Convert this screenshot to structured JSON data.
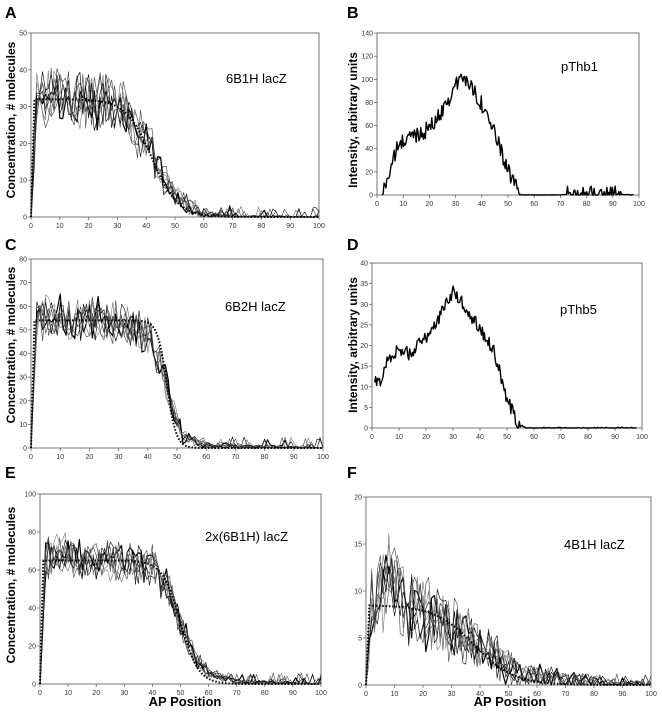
{
  "figure": {
    "x_axis_label": "AP Position",
    "y_axis_label_concentration": "Concentration, # molecules",
    "y_axis_label_intensity": "Intensity, arbitrary units"
  },
  "chart_data": [
    {
      "id": "A",
      "letter": "A",
      "type": "line",
      "title": "6B1H lacZ",
      "xlabel": "",
      "ylabel": "Concentration, # molecules",
      "xlim": [
        0,
        100
      ],
      "ylim": [
        0,
        50
      ],
      "xticks": [
        0,
        10,
        20,
        30,
        40,
        50,
        60,
        70,
        80,
        90,
        100
      ],
      "yticks": [
        0,
        10,
        20,
        30,
        40,
        50
      ],
      "description": "noisy simulated concentration traces with dotted sigmoid fit",
      "fit": {
        "plateau": 32,
        "midpoint": 42,
        "width": 4.5
      },
      "noise_amplitude": 7,
      "num_traces": 8,
      "approx_values": [
        {
          "x": 0,
          "y": 0
        },
        {
          "x": 2,
          "y": 33
        },
        {
          "x": 10,
          "y": 34
        },
        {
          "x": 20,
          "y": 31
        },
        {
          "x": 30,
          "y": 31
        },
        {
          "x": 40,
          "y": 21
        },
        {
          "x": 45,
          "y": 12
        },
        {
          "x": 50,
          "y": 6
        },
        {
          "x": 55,
          "y": 3
        },
        {
          "x": 60,
          "y": 1
        },
        {
          "x": 70,
          "y": 0
        },
        {
          "x": 100,
          "y": 0
        }
      ]
    },
    {
      "id": "B",
      "letter": "B",
      "type": "line",
      "title": "pThb1",
      "xlabel": "",
      "ylabel": "Intensity, arbitrary units",
      "xlim": [
        0,
        100
      ],
      "ylim": [
        0,
        140
      ],
      "xticks": [
        0,
        10,
        20,
        30,
        40,
        50,
        60,
        70,
        80,
        90,
        100
      ],
      "yticks": [
        0,
        20,
        40,
        60,
        80,
        100,
        120,
        140
      ],
      "description": "noisy measured intensity profile",
      "noise_amplitude": 7,
      "approx_values": [
        {
          "x": 2,
          "y": 0
        },
        {
          "x": 5,
          "y": 22
        },
        {
          "x": 8,
          "y": 42
        },
        {
          "x": 12,
          "y": 50
        },
        {
          "x": 18,
          "y": 55
        },
        {
          "x": 22,
          "y": 62
        },
        {
          "x": 27,
          "y": 82
        },
        {
          "x": 32,
          "y": 102
        },
        {
          "x": 36,
          "y": 95
        },
        {
          "x": 42,
          "y": 70
        },
        {
          "x": 47,
          "y": 40
        },
        {
          "x": 52,
          "y": 10
        },
        {
          "x": 55,
          "y": 0
        },
        {
          "x": 70,
          "y": 0
        },
        {
          "x": 80,
          "y": 2
        },
        {
          "x": 88,
          "y": 1
        },
        {
          "x": 98,
          "y": 0
        }
      ]
    },
    {
      "id": "C",
      "letter": "C",
      "type": "line",
      "title": "6B2H lacZ",
      "xlabel": "",
      "ylabel": "Concentration, # molecules",
      "xlim": [
        0,
        100
      ],
      "ylim": [
        0,
        80
      ],
      "xticks": [
        0,
        10,
        20,
        30,
        40,
        50,
        60,
        70,
        80,
        90,
        100
      ],
      "yticks": [
        0,
        10,
        20,
        30,
        40,
        50,
        60,
        70,
        80
      ],
      "description": "noisy simulated concentration traces with dotted sigmoid fit",
      "fit": {
        "plateau": 54,
        "midpoint": 46.5,
        "width": 1.6
      },
      "noise_amplitude": 8,
      "num_traces": 8,
      "approx_values": [
        {
          "x": 0,
          "y": 0
        },
        {
          "x": 2,
          "y": 55
        },
        {
          "x": 10,
          "y": 55
        },
        {
          "x": 20,
          "y": 54
        },
        {
          "x": 30,
          "y": 53
        },
        {
          "x": 40,
          "y": 48
        },
        {
          "x": 45,
          "y": 35
        },
        {
          "x": 48,
          "y": 18
        },
        {
          "x": 52,
          "y": 5
        },
        {
          "x": 60,
          "y": 1
        },
        {
          "x": 100,
          "y": 0
        }
      ]
    },
    {
      "id": "D",
      "letter": "D",
      "type": "line",
      "title": "pThb5",
      "xlabel": "",
      "ylabel": "Intensity, arbitrary units",
      "xlim": [
        0,
        100
      ],
      "ylim": [
        0,
        40
      ],
      "xticks": [
        0,
        10,
        20,
        30,
        40,
        50,
        60,
        70,
        80,
        90,
        100
      ],
      "yticks": [
        0,
        5,
        10,
        15,
        20,
        25,
        30,
        35,
        40
      ],
      "description": "noisy measured intensity profile",
      "noise_amplitude": 1.6,
      "approx_values": [
        {
          "x": 1,
          "y": 11
        },
        {
          "x": 3,
          "y": 11
        },
        {
          "x": 6,
          "y": 17
        },
        {
          "x": 10,
          "y": 19
        },
        {
          "x": 14,
          "y": 18
        },
        {
          "x": 20,
          "y": 22
        },
        {
          "x": 25,
          "y": 27
        },
        {
          "x": 30,
          "y": 33
        },
        {
          "x": 35,
          "y": 29
        },
        {
          "x": 40,
          "y": 24
        },
        {
          "x": 45,
          "y": 19
        },
        {
          "x": 50,
          "y": 7
        },
        {
          "x": 54,
          "y": 1
        },
        {
          "x": 57,
          "y": 0
        },
        {
          "x": 88,
          "y": 0
        },
        {
          "x": 98,
          "y": 0
        }
      ]
    },
    {
      "id": "E",
      "letter": "E",
      "type": "line",
      "title": "2x(6B1H) lacZ",
      "xlabel": "AP Position",
      "ylabel": "Concentration, # molecules",
      "xlim": [
        0,
        100
      ],
      "ylim": [
        0,
        100
      ],
      "xticks": [
        0,
        10,
        20,
        30,
        40,
        50,
        60,
        70,
        80,
        90,
        100
      ],
      "yticks": [
        0,
        20,
        40,
        60,
        80,
        100
      ],
      "description": "noisy simulated concentration traces with dotted sigmoid fit",
      "fit": {
        "plateau": 65,
        "midpoint": 50,
        "width": 3.2
      },
      "noise_amplitude": 9,
      "num_traces": 8,
      "approx_values": [
        {
          "x": 0,
          "y": 0
        },
        {
          "x": 2,
          "y": 66
        },
        {
          "x": 10,
          "y": 68
        },
        {
          "x": 20,
          "y": 65
        },
        {
          "x": 30,
          "y": 65
        },
        {
          "x": 40,
          "y": 62
        },
        {
          "x": 45,
          "y": 52
        },
        {
          "x": 50,
          "y": 32
        },
        {
          "x": 55,
          "y": 14
        },
        {
          "x": 60,
          "y": 6
        },
        {
          "x": 70,
          "y": 1
        },
        {
          "x": 100,
          "y": 0
        }
      ]
    },
    {
      "id": "F",
      "letter": "F",
      "type": "line",
      "title": "4B1H lacZ",
      "xlabel": "AP Position",
      "ylabel": "",
      "xlim": [
        0,
        100
      ],
      "ylim": [
        0,
        20
      ],
      "xticks": [
        0,
        10,
        20,
        30,
        40,
        50,
        60,
        70,
        80,
        90,
        100
      ],
      "yticks": [
        0,
        5,
        10,
        15,
        20
      ],
      "description": "noisy simulated concentration traces with dotted sigmoid fit",
      "fit": {
        "plateau": 8.5,
        "midpoint": 38,
        "width": 7
      },
      "noise_amplitude": 3.5,
      "num_traces": 8,
      "approx_values": [
        {
          "x": 0,
          "y": 0
        },
        {
          "x": 2,
          "y": 9
        },
        {
          "x": 8,
          "y": 12
        },
        {
          "x": 15,
          "y": 8
        },
        {
          "x": 25,
          "y": 7
        },
        {
          "x": 35,
          "y": 5
        },
        {
          "x": 45,
          "y": 3
        },
        {
          "x": 55,
          "y": 1
        },
        {
          "x": 70,
          "y": 0.5
        },
        {
          "x": 100,
          "y": 0
        }
      ]
    }
  ]
}
